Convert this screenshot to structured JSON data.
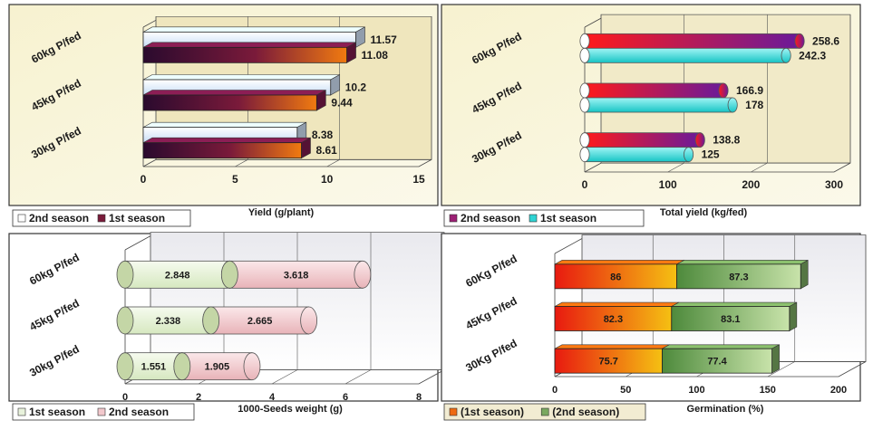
{
  "chart_data": [
    {
      "type": "bar",
      "orientation": "horizontal",
      "categories": [
        "30kg P/fed",
        "45kg P/fed",
        "60kg P/fed"
      ],
      "series": [
        {
          "name": "2nd season",
          "values": [
            8.38,
            10.2,
            11.57
          ],
          "color": "#cfe0f6"
        },
        {
          "name": "1st season",
          "values": [
            8.61,
            9.44,
            11.08
          ],
          "color": "#7a1a4a"
        }
      ],
      "data_labels": {
        "2nd season": [
          "8.38",
          "10.2",
          "11.57"
        ],
        "1st season": [
          "8.61",
          "9.44",
          "11.08"
        ]
      },
      "xlabel": "Yield (g/plant)",
      "xticks": [
        "0",
        "5",
        "10",
        "15"
      ],
      "xlim": [
        0,
        15
      ],
      "legend": [
        "2nd season",
        "1st season"
      ],
      "legend_position": "bottom-left",
      "background": "#f9f5dc"
    },
    {
      "type": "bar",
      "orientation": "horizontal",
      "categories": [
        "30kg P/fed",
        "45kg P/fed",
        "60kg P/fed"
      ],
      "series": [
        {
          "name": "2nd season",
          "values": [
            138.8,
            166.9,
            258.6
          ],
          "color": "#9c1f74"
        },
        {
          "name": "1st season",
          "values": [
            125,
            178,
            242.3
          ],
          "color": "#2ed3d3"
        }
      ],
      "data_labels": {
        "2nd season": [
          "138.8",
          "166.9",
          "258.6"
        ],
        "1st season": [
          "125",
          "178",
          "242.3"
        ]
      },
      "xlabel": "Total  yield (kg/fed)",
      "xticks": [
        "0",
        "100",
        "200",
        "300"
      ],
      "xlim": [
        0,
        300
      ],
      "legend": [
        "2nd season",
        "1st season"
      ],
      "legend_position": "bottom-left",
      "background": "#f7f3da"
    },
    {
      "type": "bar",
      "orientation": "horizontal",
      "stacked": true,
      "categories": [
        "30kg P/fed",
        "45kg P/fed",
        "60kg P/fed"
      ],
      "series": [
        {
          "name": "1st season",
          "values": [
            1.551,
            2.338,
            2.848
          ],
          "color": "#e8f2dc"
        },
        {
          "name": "2nd season",
          "values": [
            1.905,
            2.665,
            3.618
          ],
          "color": "#f2c8cc"
        }
      ],
      "data_labels": {
        "1st season": [
          "1.551",
          "2.338",
          "2.848"
        ],
        "2nd season": [
          "1.905",
          "2.665",
          "3.618"
        ]
      },
      "xlabel": "1000-Seeds weight (g)",
      "xticks": [
        "0",
        "2",
        "4",
        "6",
        "8"
      ],
      "xlim": [
        0,
        8
      ],
      "legend": [
        "1st season",
        "2nd season"
      ],
      "legend_position": "bottom-left",
      "background": "#ffffff"
    },
    {
      "type": "bar",
      "orientation": "horizontal",
      "stacked": true,
      "categories": [
        "30Kg P/fed",
        "45Kg P/fed",
        "60Kg P/fed"
      ],
      "series": [
        {
          "name": "(1st season)",
          "values": [
            75.7,
            82.3,
            86
          ],
          "color": "#ef6a10"
        },
        {
          "name": "(2nd season)",
          "values": [
            77.4,
            83.1,
            87.3
          ],
          "color": "#7aa860"
        }
      ],
      "data_labels": {
        "(1st season)": [
          "75.7",
          "82.3",
          "86"
        ],
        "(2nd season)": [
          "77.4",
          "83.1",
          "87.3"
        ]
      },
      "xlabel": "Germination (%)",
      "xticks": [
        "0",
        "50",
        "100",
        "150",
        "200"
      ],
      "xlim": [
        0,
        200
      ],
      "legend": [
        "(1st season)",
        "(2nd season)"
      ],
      "legend_position": "bottom-left",
      "background": "#ffffff"
    }
  ]
}
